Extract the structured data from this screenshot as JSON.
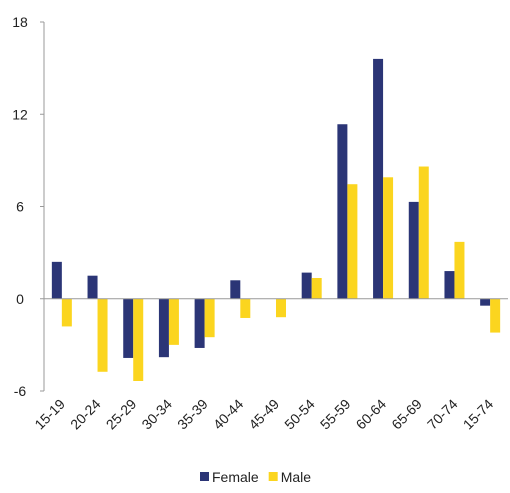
{
  "chart_data": {
    "type": "bar",
    "categories": [
      "15-19",
      "20-24",
      "25-29",
      "30-34",
      "35-39",
      "40-44",
      "45-49",
      "50-54",
      "55-59",
      "60-64",
      "65-69",
      "70-74",
      "15-74"
    ],
    "series": [
      {
        "name": "Female",
        "color": "#2b3576",
        "values": [
          2.4,
          1.5,
          -3.85,
          -3.8,
          -3.2,
          1.2,
          0,
          1.7,
          11.35,
          15.6,
          6.3,
          1.8,
          -0.45
        ]
      },
      {
        "name": "Male",
        "color": "#fbd51f",
        "values": [
          -1.8,
          -4.75,
          -5.35,
          -3.0,
          -2.5,
          -1.25,
          -1.2,
          1.35,
          7.45,
          7.9,
          8.6,
          3.7,
          -2.2
        ]
      }
    ],
    "ylim": [
      -6,
      18
    ],
    "yticks": [
      -6,
      0,
      6,
      12,
      18
    ],
    "legend": "bottom"
  }
}
